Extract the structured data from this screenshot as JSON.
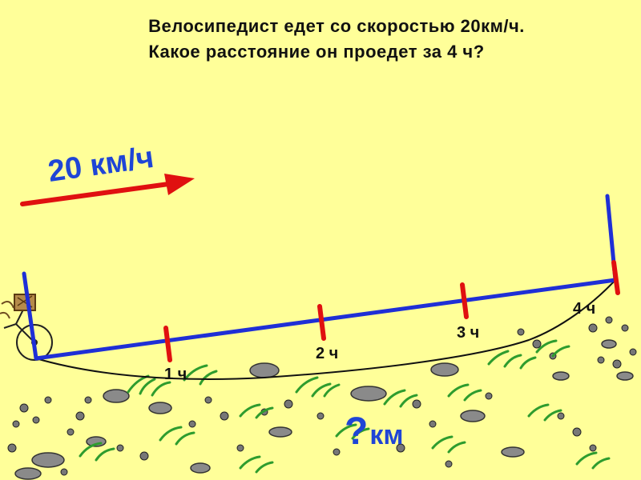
{
  "problem": {
    "line1": "Велосипедист едет со скоростью 20км/ч.",
    "line2": "Какое расстояние он проедет за 4 ч?"
  },
  "speed_label": "20 км/ч",
  "hour_labels": [
    "1 ч",
    "2 ч",
    "3 ч",
    "4 ч"
  ],
  "distance_label": {
    "question": "?",
    "unit": "км"
  },
  "colors": {
    "background": "#FFFF99",
    "segment": "#1F2FD6",
    "tick": "#E01010",
    "arrow": "#E01010",
    "speed_text": "#1F45D6"
  }
}
